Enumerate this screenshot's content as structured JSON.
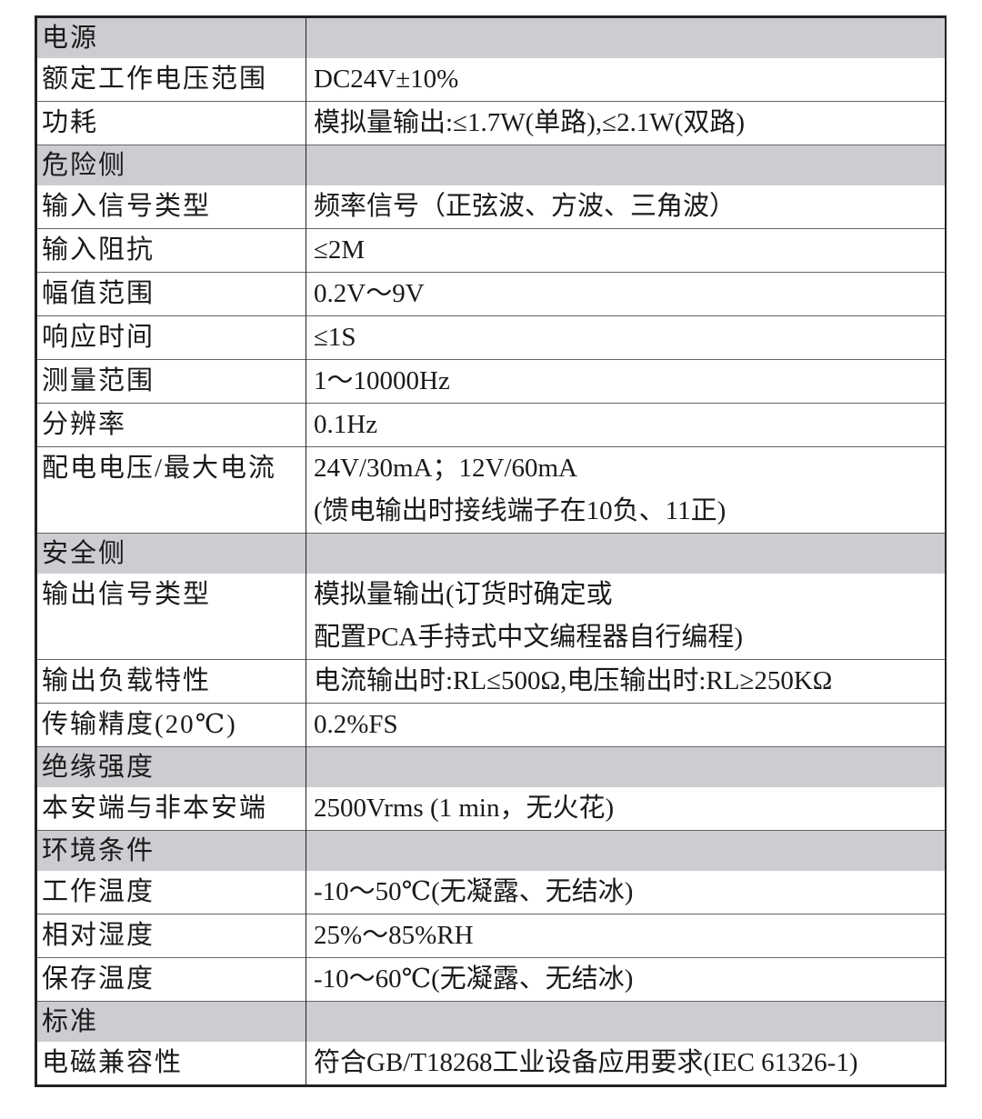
{
  "rows": [
    {
      "section": true,
      "key": "电源",
      "value": []
    },
    {
      "key": "额定工作电压范围",
      "value": [
        "DC24V±10%"
      ]
    },
    {
      "key": "功耗",
      "value": [
        "模拟量输出:≤1.7W(单路),≤2.1W(双路)"
      ]
    },
    {
      "section": true,
      "key": "危险侧",
      "value": []
    },
    {
      "key": "输入信号类型",
      "value": [
        "频率信号（正弦波、方波、三角波）"
      ]
    },
    {
      "key": "输入阻抗",
      "value": [
        "≤2M"
      ]
    },
    {
      "key": "幅值范围",
      "value": [
        "0.2V～9V"
      ]
    },
    {
      "key": "响应时间",
      "value": [
        "≤1S"
      ]
    },
    {
      "key": "测量范围",
      "value": [
        "1～10000Hz"
      ]
    },
    {
      "key": "分辨率",
      "value": [
        "0.1Hz"
      ]
    },
    {
      "key": "配电电压/最大电流",
      "value": [
        "24V/30mA；12V/60mA",
        " (馈电输出时接线端子在10负、11正)"
      ]
    },
    {
      "section": true,
      "key": "安全侧",
      "value": []
    },
    {
      "key": "输出信号类型",
      "value": [
        "模拟量输出(订货时确定或",
        "配置PCA手持式中文编程器自行编程)"
      ]
    },
    {
      "key": "输出负载特性",
      "value": [
        "电流输出时:RL≤500Ω,电压输出时:RL≥250KΩ"
      ]
    },
    {
      "key": "传输精度(20℃)",
      "value": [
        "0.2%FS"
      ]
    },
    {
      "section": true,
      "key": "绝缘强度",
      "value": []
    },
    {
      "key": "本安端与非本安端",
      "value": [
        "2500Vrms (1 min，无火花)"
      ]
    },
    {
      "section": true,
      "key": "环境条件",
      "value": []
    },
    {
      "key": "工作温度",
      "value": [
        "-10～50℃(无凝露、无结冰)"
      ]
    },
    {
      "key": "相对湿度",
      "value": [
        "25%～85%RH"
      ]
    },
    {
      "key": "保存温度",
      "value": [
        "-10～60℃(无凝露、无结冰)"
      ]
    },
    {
      "section": true,
      "key": "标准",
      "value": []
    },
    {
      "key": "电磁兼容性",
      "value": [
        "符合GB/T18268工业设备应用要求(IEC 61326-1)"
      ]
    }
  ],
  "colors": {
    "section_bg": "#cdccd1",
    "border": "#222222"
  }
}
